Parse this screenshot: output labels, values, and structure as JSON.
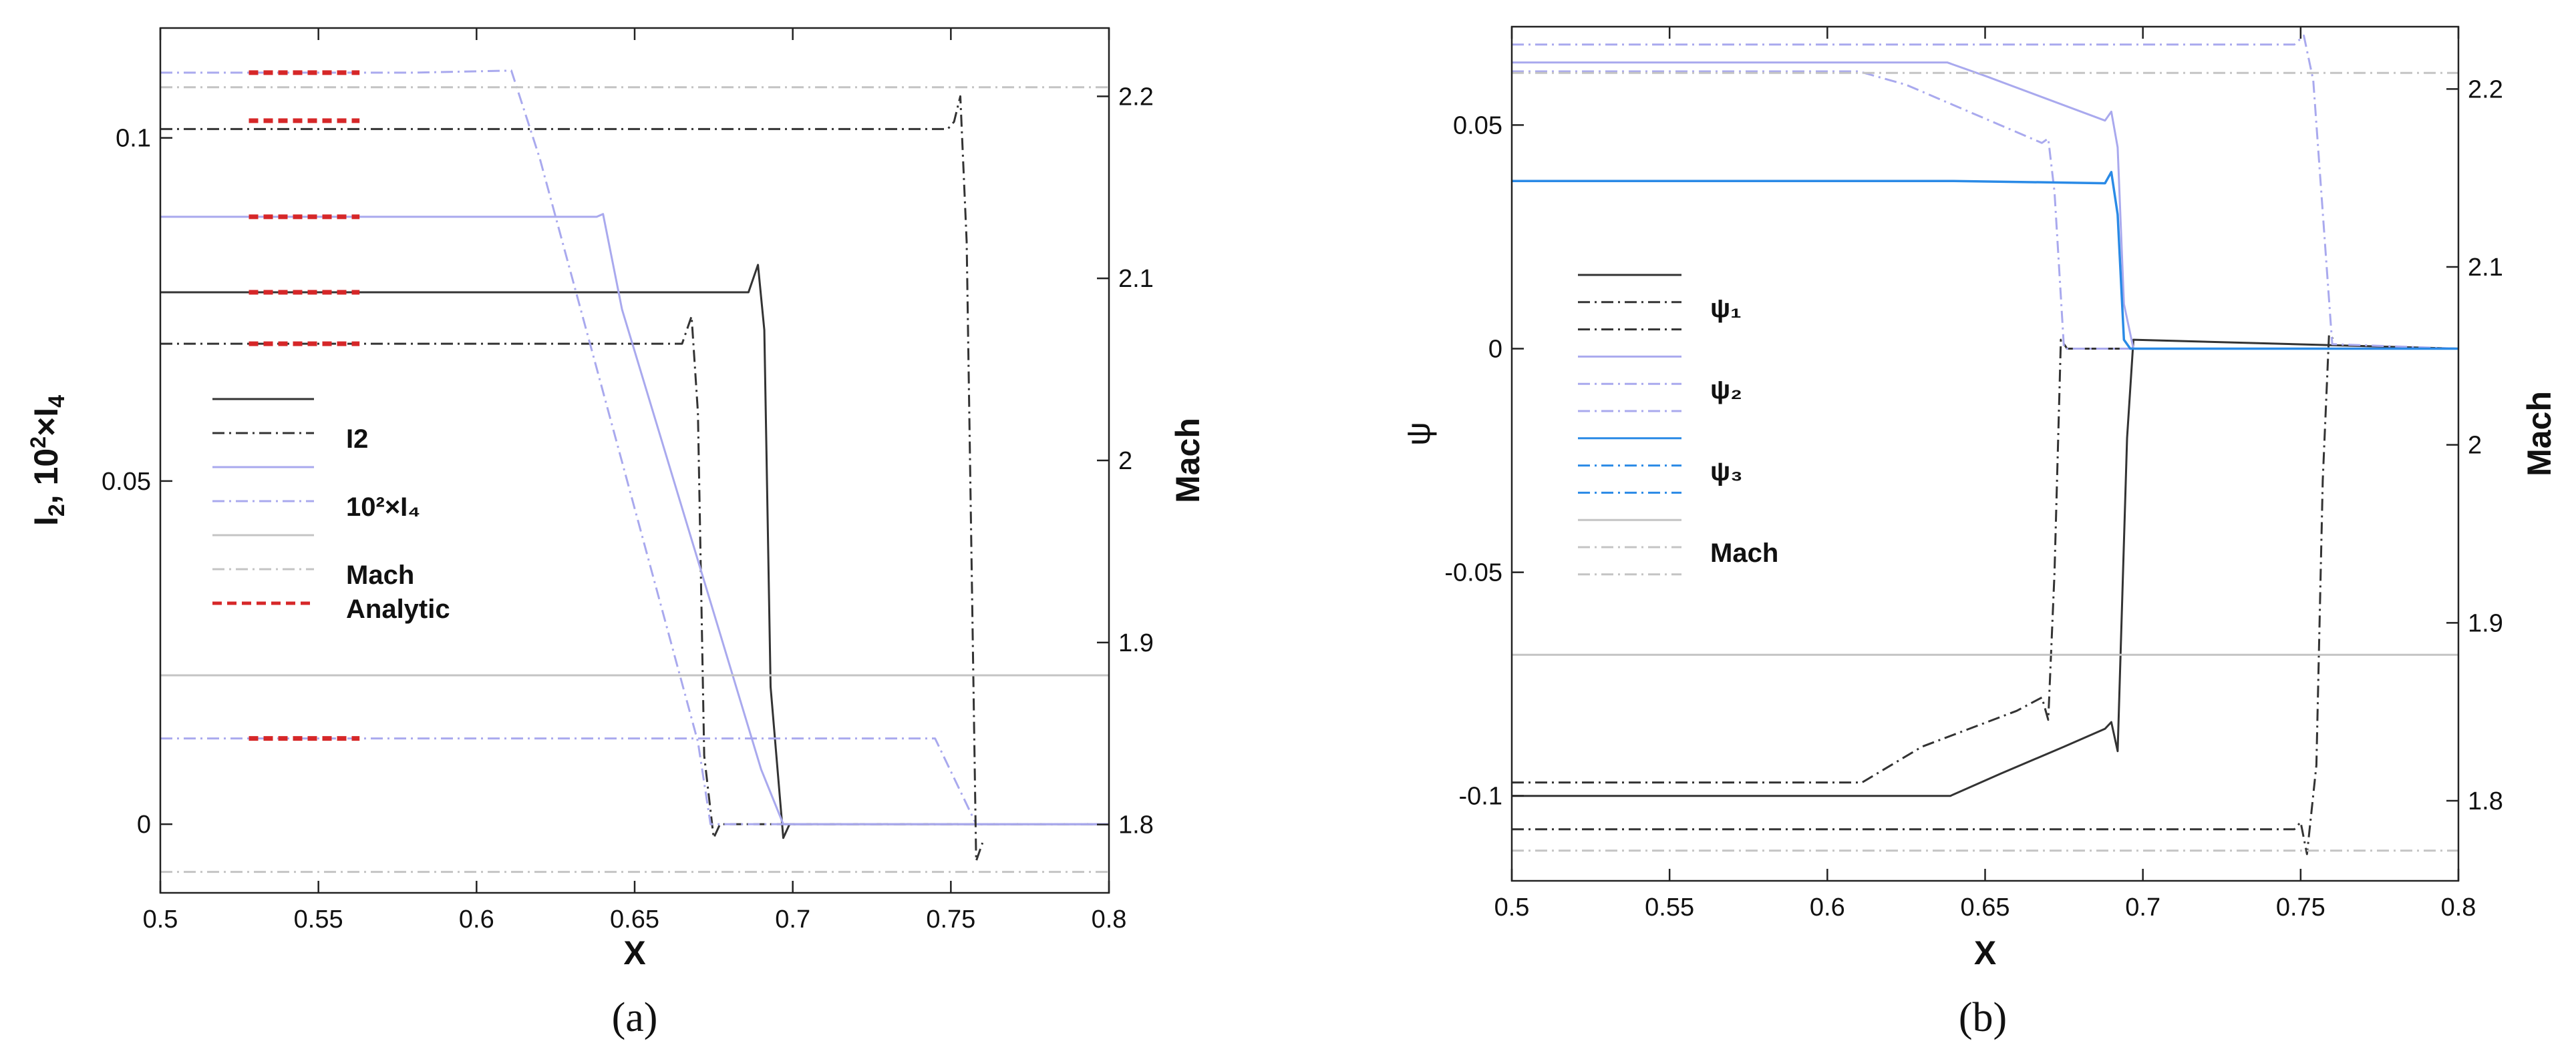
{
  "colors": {
    "black": "#333333",
    "lavender": "#a9a9ee",
    "blue": "#2a8ae6",
    "gray": "#c4c4c4",
    "red": "#d62728"
  },
  "chart_data": [
    {
      "type": "line",
      "caption": "(a)",
      "xlabel": "X",
      "ylabel_left": {
        "base": "I",
        "sub": "2",
        "mid": ", 10",
        "sup": "2",
        "mul": "×I",
        "sub2": "4"
      },
      "ylabel_right": "Mach",
      "xlim": [
        0.5,
        0.8
      ],
      "ylim_left": [
        -0.01,
        0.116
      ],
      "ylim_right": [
        1.7625,
        2.2375
      ],
      "xticks": [
        0.5,
        0.55,
        0.6,
        0.65,
        0.7,
        0.75,
        0.8
      ],
      "xtick_labels": [
        "0.5",
        "0.55",
        "0.6",
        "0.65",
        "0.7",
        "0.75",
        "0.8"
      ],
      "yticks_left": [
        0,
        0.05,
        0.1
      ],
      "ytick_labels_left": [
        "0",
        "0.05",
        "0.1"
      ],
      "yticks_right": [
        1.8,
        1.9,
        2.0,
        2.1,
        2.2
      ],
      "ytick_labels_right": [
        "1.8",
        "1.9",
        "2",
        "2.1",
        "2.2"
      ],
      "legend": [
        {
          "label": "",
          "color": "black",
          "dash": "solid"
        },
        {
          "label": "I2",
          "color": "black",
          "dash": "dashdot"
        },
        {
          "label": "",
          "color": "lavender",
          "dash": "solid"
        },
        {
          "label": "10²×I₄",
          "color": "lavender",
          "dash": "dashdot"
        },
        {
          "label": "",
          "color": "gray",
          "dash": "solid"
        },
        {
          "label": "Mach",
          "color": "gray",
          "dash": "dashdot"
        },
        {
          "label": "Analytic",
          "color": "red",
          "dash": "dashed"
        }
      ],
      "series": [
        {
          "axis": "left",
          "color": "black",
          "dash": "solid",
          "x": [
            0.5,
            0.686,
            0.689,
            0.691,
            0.693,
            0.697,
            0.699,
            0.8
          ],
          "y": [
            0.0775,
            0.0775,
            0.0815,
            0.072,
            0.02,
            -0.002,
            0.0,
            0.0
          ]
        },
        {
          "axis": "left",
          "color": "black",
          "dash": "dashdot",
          "x": [
            0.5,
            0.665,
            0.668,
            0.67,
            0.672,
            0.675,
            0.677,
            0.8
          ],
          "y": [
            0.07,
            0.07,
            0.074,
            0.06,
            0.01,
            -0.002,
            0.0,
            0.0
          ]
        },
        {
          "axis": "left",
          "color": "lavender",
          "dash": "solid",
          "x": [
            0.5,
            0.638,
            0.64,
            0.646,
            0.69,
            0.697,
            0.8
          ],
          "y": [
            0.0885,
            0.0885,
            0.0889,
            0.075,
            0.008,
            0.0,
            0.0
          ]
        },
        {
          "axis": "left",
          "color": "lavender",
          "dash": "dashdot",
          "x": [
            0.5,
            0.58,
            0.611,
            0.62,
            0.67,
            0.674,
            0.8
          ],
          "y": [
            0.1095,
            0.1095,
            0.1098,
            0.097,
            0.012,
            0.0,
            0.0
          ]
        },
        {
          "axis": "left",
          "color": "lavender",
          "dash": "dashdot",
          "x": [
            0.5,
            0.745,
            0.758,
            0.8
          ],
          "y": [
            0.0125,
            0.0125,
            0.0,
            0.0
          ]
        },
        {
          "axis": "right",
          "color": "black",
          "dash": "dashdot",
          "x": [
            0.5,
            0.749,
            0.751,
            0.753,
            0.755,
            0.758,
            0.76
          ],
          "y": [
            2.182,
            2.182,
            2.186,
            2.2,
            2.12,
            1.78,
            1.79
          ]
        },
        {
          "axis": "right",
          "color": "gray",
          "dash": "solid",
          "x": [
            0.5,
            0.8
          ],
          "y": [
            1.882,
            1.882
          ]
        },
        {
          "axis": "right",
          "color": "gray",
          "dash": "dashdot",
          "x": [
            0.5,
            0.8
          ],
          "y": [
            2.205,
            2.205
          ]
        },
        {
          "axis": "right",
          "color": "gray",
          "dash": "dashdot",
          "x": [
            0.5,
            0.8
          ],
          "y": [
            1.774,
            1.774
          ]
        },
        {
          "axis": "left",
          "color": "red",
          "dash": "dashed",
          "x": [
            0.528,
            0.563
          ],
          "y": [
            0.1095,
            0.1095
          ]
        },
        {
          "axis": "left",
          "color": "red",
          "dash": "dashed",
          "x": [
            0.528,
            0.563
          ],
          "y": [
            0.1025,
            0.1025
          ]
        },
        {
          "axis": "left",
          "color": "red",
          "dash": "dashed",
          "x": [
            0.528,
            0.563
          ],
          "y": [
            0.0885,
            0.0885
          ]
        },
        {
          "axis": "left",
          "color": "red",
          "dash": "dashed",
          "x": [
            0.528,
            0.563
          ],
          "y": [
            0.0775,
            0.0775
          ]
        },
        {
          "axis": "left",
          "color": "red",
          "dash": "dashed",
          "x": [
            0.528,
            0.563
          ],
          "y": [
            0.07,
            0.07
          ]
        },
        {
          "axis": "left",
          "color": "red",
          "dash": "dashed",
          "x": [
            0.528,
            0.563
          ],
          "y": [
            0.0125,
            0.0125
          ]
        }
      ]
    },
    {
      "type": "line",
      "caption": "(b)",
      "xlabel": "X",
      "ylabel_left": "ψ",
      "ylabel_right": "Mach",
      "xlim": [
        0.5,
        0.8
      ],
      "ylim_left": [
        -0.119,
        0.072
      ],
      "ylim_right": [
        1.755,
        2.235
      ],
      "xticks": [
        0.5,
        0.55,
        0.6,
        0.65,
        0.7,
        0.75,
        0.8
      ],
      "xtick_labels": [
        "0.5",
        "0.55",
        "0.6",
        "0.65",
        "0.7",
        "0.75",
        "0.8"
      ],
      "yticks_left": [
        -0.1,
        -0.05,
        0,
        0.05
      ],
      "ytick_labels_left": [
        "-0.1",
        "-0.05",
        "0",
        "0.05"
      ],
      "yticks_right": [
        1.8,
        1.9,
        2.0,
        2.1,
        2.2
      ],
      "ytick_labels_right": [
        "1.8",
        "1.9",
        "2",
        "2.1",
        "2.2"
      ],
      "legend": [
        {
          "label": "",
          "color": "black",
          "dash": "solid"
        },
        {
          "label": "ψ₁",
          "color": "black",
          "dash": "dashdot"
        },
        {
          "label": "",
          "color": "black",
          "dash": "dashdot"
        },
        {
          "label": "",
          "color": "lavender",
          "dash": "solid"
        },
        {
          "label": "ψ₂",
          "color": "lavender",
          "dash": "dashdot"
        },
        {
          "label": "",
          "color": "lavender",
          "dash": "dashdot"
        },
        {
          "label": "",
          "color": "blue",
          "dash": "solid"
        },
        {
          "label": "ψ₃",
          "color": "blue",
          "dash": "dashdot"
        },
        {
          "label": "",
          "color": "blue",
          "dash": "dashdot"
        },
        {
          "label": "",
          "color": "gray",
          "dash": "solid"
        },
        {
          "label": "Mach",
          "color": "gray",
          "dash": "dashdot"
        },
        {
          "label": "",
          "color": "gray",
          "dash": "dashdot"
        }
      ],
      "series": [
        {
          "axis": "left",
          "color": "black",
          "dash": "solid",
          "x": [
            0.5,
            0.639,
            0.655,
            0.675,
            0.688,
            0.69,
            0.692,
            0.695,
            0.697,
            0.8
          ],
          "y": [
            -0.1,
            -0.1,
            -0.095,
            -0.089,
            -0.085,
            -0.0835,
            -0.09,
            -0.02,
            0.002,
            0.0
          ]
        },
        {
          "axis": "left",
          "color": "black",
          "dash": "dashdot",
          "x": [
            0.5,
            0.611,
            0.63,
            0.66,
            0.668,
            0.67,
            0.672,
            0.674,
            0.676,
            0.8
          ],
          "y": [
            -0.097,
            -0.097,
            -0.089,
            -0.081,
            -0.078,
            -0.083,
            -0.05,
            0.002,
            0.0,
            0.0
          ]
        },
        {
          "axis": "right",
          "color": "black",
          "dash": "dashdot",
          "x": [
            0.5,
            0.748,
            0.75,
            0.752,
            0.755,
            0.757,
            0.759,
            0.761
          ],
          "y": [
            1.784,
            1.784,
            1.788,
            1.77,
            1.82,
            1.98,
            2.062,
            2.058
          ]
        },
        {
          "axis": "left",
          "color": "lavender",
          "dash": "solid",
          "x": [
            0.5,
            0.638,
            0.65,
            0.688,
            0.69,
            0.692,
            0.694,
            0.697,
            0.8
          ],
          "y": [
            0.064,
            0.064,
            0.061,
            0.051,
            0.053,
            0.045,
            0.01,
            0.0,
            0.0
          ]
        },
        {
          "axis": "left",
          "color": "lavender",
          "dash": "dashdot",
          "x": [
            0.5,
            0.61,
            0.625,
            0.668,
            0.67,
            0.672,
            0.675,
            0.8
          ],
          "y": [
            0.062,
            0.062,
            0.059,
            0.046,
            0.047,
            0.035,
            0.0,
            0.0
          ]
        },
        {
          "axis": "left",
          "color": "lavender",
          "dash": "dashdot",
          "x": [
            0.5,
            0.748,
            0.751,
            0.754,
            0.76,
            0.8
          ],
          "y": [
            0.068,
            0.068,
            0.07,
            0.06,
            0.001,
            0.0
          ]
        },
        {
          "axis": "left",
          "color": "blue",
          "dash": "solid",
          "x": [
            0.5,
            0.64,
            0.688,
            0.69,
            0.692,
            0.694,
            0.696,
            0.8
          ],
          "y": [
            0.0375,
            0.0375,
            0.037,
            0.0395,
            0.03,
            0.002,
            0.0,
            0.0
          ]
        },
        {
          "axis": "right",
          "color": "gray",
          "dash": "solid",
          "x": [
            0.5,
            0.8
          ],
          "y": [
            1.882,
            1.882
          ]
        },
        {
          "axis": "right",
          "color": "gray",
          "dash": "dashdot",
          "x": [
            0.5,
            0.8
          ],
          "y": [
            2.209,
            2.209
          ]
        },
        {
          "axis": "right",
          "color": "gray",
          "dash": "dashdot",
          "x": [
            0.5,
            0.8
          ],
          "y": [
            1.772,
            1.772
          ]
        }
      ]
    }
  ]
}
